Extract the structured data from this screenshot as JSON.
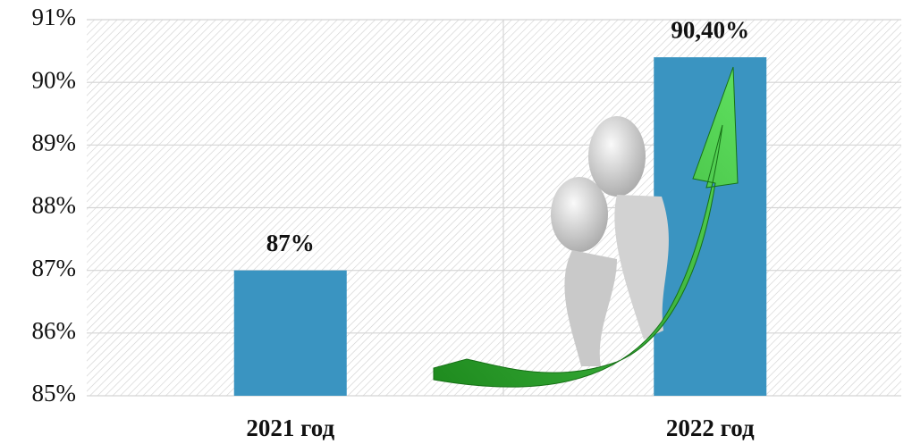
{
  "chart_data": {
    "type": "bar",
    "categories": [
      "2021 год",
      "2022 год"
    ],
    "values": [
      87,
      90.4
    ],
    "value_labels": [
      "87%",
      "90,40%"
    ],
    "color": "#3a94c1",
    "ylim": [
      85,
      91
    ],
    "yticks": [
      {
        "value": 85,
        "label": "85%"
      },
      {
        "value": 86,
        "label": "86%"
      },
      {
        "value": 87,
        "label": "87%"
      },
      {
        "value": 88,
        "label": "88%"
      },
      {
        "value": 89,
        "label": "89%"
      },
      {
        "value": 90,
        "label": "90%"
      },
      {
        "value": 91,
        "label": "91%"
      }
    ],
    "grid": true
  }
}
